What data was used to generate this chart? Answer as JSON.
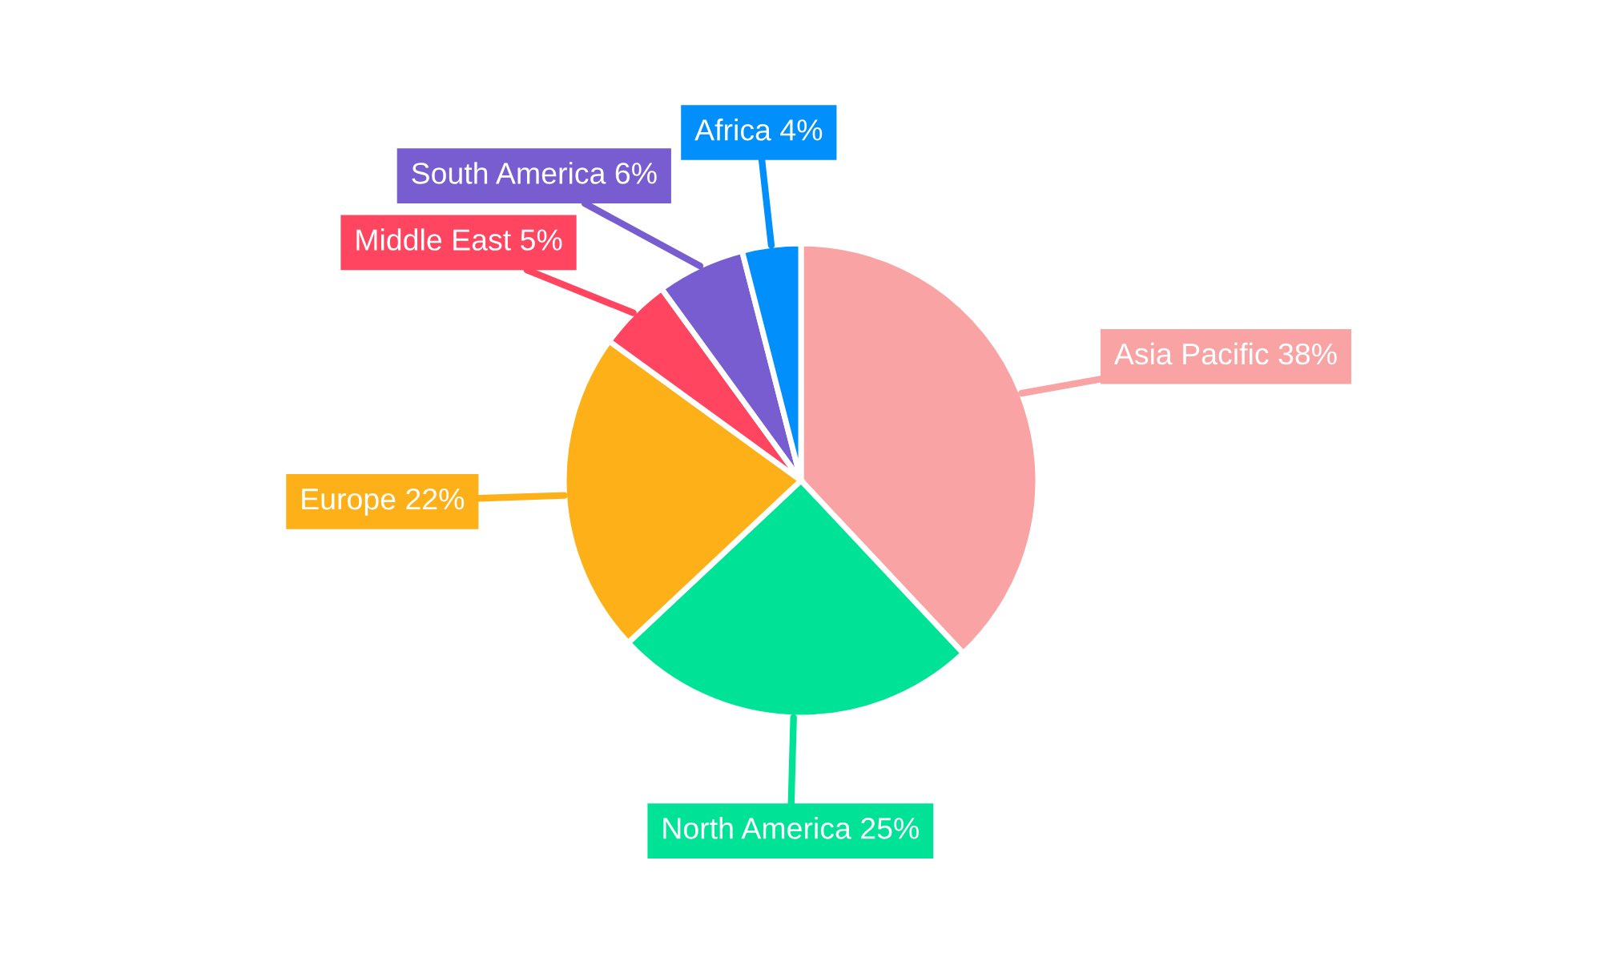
{
  "chart_data": {
    "type": "pie",
    "categories": [
      "Asia Pacific",
      "North America",
      "Europe",
      "Middle East",
      "South America",
      "Africa"
    ],
    "values": [
      38,
      25,
      22,
      5,
      6,
      4
    ],
    "value_labels": [
      "38%",
      "25%",
      "22%",
      "5%",
      "6%",
      "4%"
    ],
    "colors": [
      "#f9a3a4",
      "#00e396",
      "#feb019",
      "#ff4560",
      "#775dd0",
      "#008ffb"
    ],
    "legend": false
  }
}
